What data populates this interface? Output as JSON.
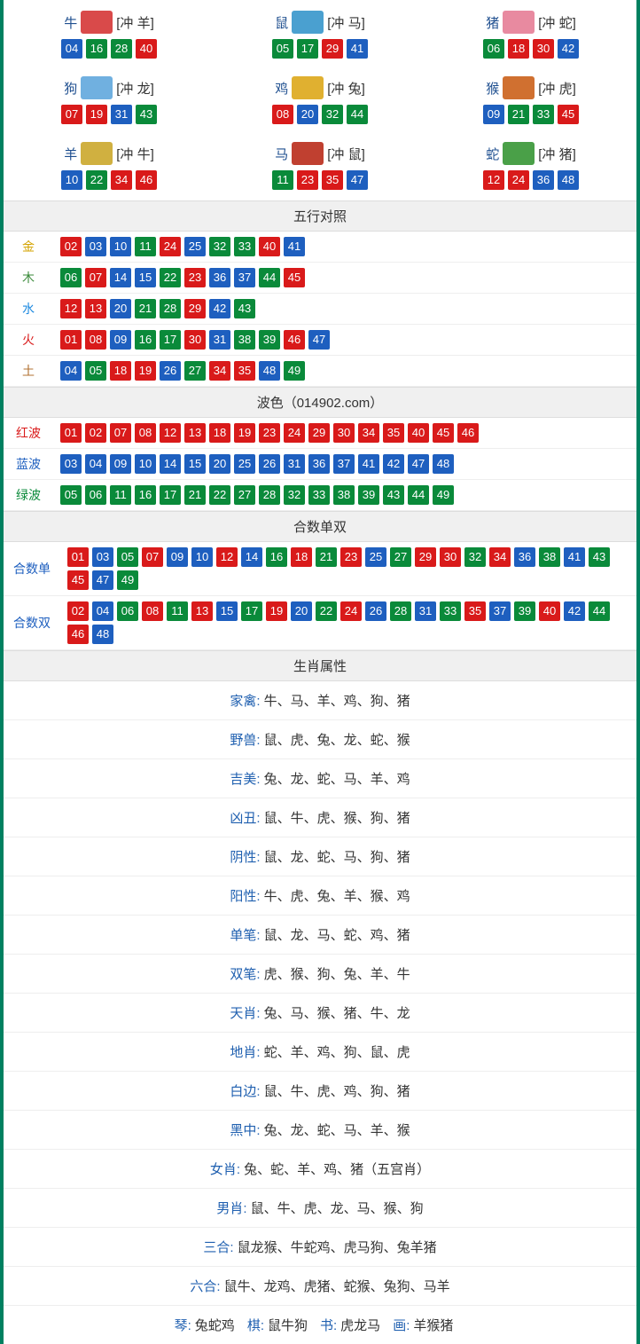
{
  "colors": {
    "red": "#d91a1a",
    "blue": "#1e5fbf",
    "green": "#0a8a3a",
    "gold": "#d4a300",
    "wood": "#3a8a3a",
    "water": "#1e8ae0",
    "fire": "#d91a1a",
    "earth": "#b07030",
    "label_red": "#d91a1a",
    "label_blue": "#1e5fbf",
    "label_green": "#0a8a3a",
    "label_link": "#205090"
  },
  "zodiac_icon_colors": {
    "牛": "#d94a4a",
    "鼠": "#4aa0d0",
    "猪": "#e88aa0",
    "狗": "#70b0e0",
    "鸡": "#e0b030",
    "猴": "#d07030",
    "羊": "#d0b040",
    "马": "#c04030",
    "蛇": "#4aa048"
  },
  "zodiac": [
    {
      "name": "牛",
      "clash": "[冲 羊]",
      "balls": [
        {
          "n": "04",
          "c": "blue"
        },
        {
          "n": "16",
          "c": "green"
        },
        {
          "n": "28",
          "c": "green"
        },
        {
          "n": "40",
          "c": "red"
        }
      ]
    },
    {
      "name": "鼠",
      "clash": "[冲 马]",
      "balls": [
        {
          "n": "05",
          "c": "green"
        },
        {
          "n": "17",
          "c": "green"
        },
        {
          "n": "29",
          "c": "red"
        },
        {
          "n": "41",
          "c": "blue"
        }
      ]
    },
    {
      "name": "猪",
      "clash": "[冲 蛇]",
      "balls": [
        {
          "n": "06",
          "c": "green"
        },
        {
          "n": "18",
          "c": "red"
        },
        {
          "n": "30",
          "c": "red"
        },
        {
          "n": "42",
          "c": "blue"
        }
      ]
    },
    {
      "name": "狗",
      "clash": "[冲 龙]",
      "balls": [
        {
          "n": "07",
          "c": "red"
        },
        {
          "n": "19",
          "c": "red"
        },
        {
          "n": "31",
          "c": "blue"
        },
        {
          "n": "43",
          "c": "green"
        }
      ]
    },
    {
      "name": "鸡",
      "clash": "[冲 兔]",
      "balls": [
        {
          "n": "08",
          "c": "red"
        },
        {
          "n": "20",
          "c": "blue"
        },
        {
          "n": "32",
          "c": "green"
        },
        {
          "n": "44",
          "c": "green"
        }
      ]
    },
    {
      "name": "猴",
      "clash": "[冲 虎]",
      "balls": [
        {
          "n": "09",
          "c": "blue"
        },
        {
          "n": "21",
          "c": "green"
        },
        {
          "n": "33",
          "c": "green"
        },
        {
          "n": "45",
          "c": "red"
        }
      ]
    },
    {
      "name": "羊",
      "clash": "[冲 牛]",
      "balls": [
        {
          "n": "10",
          "c": "blue"
        },
        {
          "n": "22",
          "c": "green"
        },
        {
          "n": "34",
          "c": "red"
        },
        {
          "n": "46",
          "c": "red"
        }
      ]
    },
    {
      "name": "马",
      "clash": "[冲 鼠]",
      "balls": [
        {
          "n": "11",
          "c": "green"
        },
        {
          "n": "23",
          "c": "red"
        },
        {
          "n": "35",
          "c": "red"
        },
        {
          "n": "47",
          "c": "blue"
        }
      ]
    },
    {
      "name": "蛇",
      "clash": "[冲 猪]",
      "balls": [
        {
          "n": "12",
          "c": "red"
        },
        {
          "n": "24",
          "c": "red"
        },
        {
          "n": "36",
          "c": "blue"
        },
        {
          "n": "48",
          "c": "blue"
        }
      ]
    }
  ],
  "sections": {
    "wuxing": "五行对照",
    "bose": "波色（014902.com）",
    "heshu": "合数单双",
    "shuxing": "生肖属性"
  },
  "wuxing": [
    {
      "label": "金",
      "color": "gold",
      "balls": [
        {
          "n": "02",
          "c": "red"
        },
        {
          "n": "03",
          "c": "blue"
        },
        {
          "n": "10",
          "c": "blue"
        },
        {
          "n": "11",
          "c": "green"
        },
        {
          "n": "24",
          "c": "red"
        },
        {
          "n": "25",
          "c": "blue"
        },
        {
          "n": "32",
          "c": "green"
        },
        {
          "n": "33",
          "c": "green"
        },
        {
          "n": "40",
          "c": "red"
        },
        {
          "n": "41",
          "c": "blue"
        }
      ]
    },
    {
      "label": "木",
      "color": "wood",
      "balls": [
        {
          "n": "06",
          "c": "green"
        },
        {
          "n": "07",
          "c": "red"
        },
        {
          "n": "14",
          "c": "blue"
        },
        {
          "n": "15",
          "c": "blue"
        },
        {
          "n": "22",
          "c": "green"
        },
        {
          "n": "23",
          "c": "red"
        },
        {
          "n": "36",
          "c": "blue"
        },
        {
          "n": "37",
          "c": "blue"
        },
        {
          "n": "44",
          "c": "green"
        },
        {
          "n": "45",
          "c": "red"
        }
      ]
    },
    {
      "label": "水",
      "color": "water",
      "balls": [
        {
          "n": "12",
          "c": "red"
        },
        {
          "n": "13",
          "c": "red"
        },
        {
          "n": "20",
          "c": "blue"
        },
        {
          "n": "21",
          "c": "green"
        },
        {
          "n": "28",
          "c": "green"
        },
        {
          "n": "29",
          "c": "red"
        },
        {
          "n": "42",
          "c": "blue"
        },
        {
          "n": "43",
          "c": "green"
        }
      ]
    },
    {
      "label": "火",
      "color": "fire",
      "balls": [
        {
          "n": "01",
          "c": "red"
        },
        {
          "n": "08",
          "c": "red"
        },
        {
          "n": "09",
          "c": "blue"
        },
        {
          "n": "16",
          "c": "green"
        },
        {
          "n": "17",
          "c": "green"
        },
        {
          "n": "30",
          "c": "red"
        },
        {
          "n": "31",
          "c": "blue"
        },
        {
          "n": "38",
          "c": "green"
        },
        {
          "n": "39",
          "c": "green"
        },
        {
          "n": "46",
          "c": "red"
        },
        {
          "n": "47",
          "c": "blue"
        }
      ]
    },
    {
      "label": "土",
      "color": "earth",
      "balls": [
        {
          "n": "04",
          "c": "blue"
        },
        {
          "n": "05",
          "c": "green"
        },
        {
          "n": "18",
          "c": "red"
        },
        {
          "n": "19",
          "c": "red"
        },
        {
          "n": "26",
          "c": "blue"
        },
        {
          "n": "27",
          "c": "green"
        },
        {
          "n": "34",
          "c": "red"
        },
        {
          "n": "35",
          "c": "red"
        },
        {
          "n": "48",
          "c": "blue"
        },
        {
          "n": "49",
          "c": "green"
        }
      ]
    }
  ],
  "bose": [
    {
      "label": "红波",
      "color": "label_red",
      "balls": [
        {
          "n": "01",
          "c": "red"
        },
        {
          "n": "02",
          "c": "red"
        },
        {
          "n": "07",
          "c": "red"
        },
        {
          "n": "08",
          "c": "red"
        },
        {
          "n": "12",
          "c": "red"
        },
        {
          "n": "13",
          "c": "red"
        },
        {
          "n": "18",
          "c": "red"
        },
        {
          "n": "19",
          "c": "red"
        },
        {
          "n": "23",
          "c": "red"
        },
        {
          "n": "24",
          "c": "red"
        },
        {
          "n": "29",
          "c": "red"
        },
        {
          "n": "30",
          "c": "red"
        },
        {
          "n": "34",
          "c": "red"
        },
        {
          "n": "35",
          "c": "red"
        },
        {
          "n": "40",
          "c": "red"
        },
        {
          "n": "45",
          "c": "red"
        },
        {
          "n": "46",
          "c": "red"
        }
      ]
    },
    {
      "label": "蓝波",
      "color": "label_blue",
      "balls": [
        {
          "n": "03",
          "c": "blue"
        },
        {
          "n": "04",
          "c": "blue"
        },
        {
          "n": "09",
          "c": "blue"
        },
        {
          "n": "10",
          "c": "blue"
        },
        {
          "n": "14",
          "c": "blue"
        },
        {
          "n": "15",
          "c": "blue"
        },
        {
          "n": "20",
          "c": "blue"
        },
        {
          "n": "25",
          "c": "blue"
        },
        {
          "n": "26",
          "c": "blue"
        },
        {
          "n": "31",
          "c": "blue"
        },
        {
          "n": "36",
          "c": "blue"
        },
        {
          "n": "37",
          "c": "blue"
        },
        {
          "n": "41",
          "c": "blue"
        },
        {
          "n": "42",
          "c": "blue"
        },
        {
          "n": "47",
          "c": "blue"
        },
        {
          "n": "48",
          "c": "blue"
        }
      ]
    },
    {
      "label": "绿波",
      "color": "label_green",
      "balls": [
        {
          "n": "05",
          "c": "green"
        },
        {
          "n": "06",
          "c": "green"
        },
        {
          "n": "11",
          "c": "green"
        },
        {
          "n": "16",
          "c": "green"
        },
        {
          "n": "17",
          "c": "green"
        },
        {
          "n": "21",
          "c": "green"
        },
        {
          "n": "22",
          "c": "green"
        },
        {
          "n": "27",
          "c": "green"
        },
        {
          "n": "28",
          "c": "green"
        },
        {
          "n": "32",
          "c": "green"
        },
        {
          "n": "33",
          "c": "green"
        },
        {
          "n": "38",
          "c": "green"
        },
        {
          "n": "39",
          "c": "green"
        },
        {
          "n": "43",
          "c": "green"
        },
        {
          "n": "44",
          "c": "green"
        },
        {
          "n": "49",
          "c": "green"
        }
      ]
    }
  ],
  "heshu": [
    {
      "label": "合数单",
      "color": "label_blue",
      "balls": [
        {
          "n": "01",
          "c": "red"
        },
        {
          "n": "03",
          "c": "blue"
        },
        {
          "n": "05",
          "c": "green"
        },
        {
          "n": "07",
          "c": "red"
        },
        {
          "n": "09",
          "c": "blue"
        },
        {
          "n": "10",
          "c": "blue"
        },
        {
          "n": "12",
          "c": "red"
        },
        {
          "n": "14",
          "c": "blue"
        },
        {
          "n": "16",
          "c": "green"
        },
        {
          "n": "18",
          "c": "red"
        },
        {
          "n": "21",
          "c": "green"
        },
        {
          "n": "23",
          "c": "red"
        },
        {
          "n": "25",
          "c": "blue"
        },
        {
          "n": "27",
          "c": "green"
        },
        {
          "n": "29",
          "c": "red"
        },
        {
          "n": "30",
          "c": "red"
        },
        {
          "n": "32",
          "c": "green"
        },
        {
          "n": "34",
          "c": "red"
        },
        {
          "n": "36",
          "c": "blue"
        },
        {
          "n": "38",
          "c": "green"
        },
        {
          "n": "41",
          "c": "blue"
        },
        {
          "n": "43",
          "c": "green"
        },
        {
          "n": "45",
          "c": "red"
        },
        {
          "n": "47",
          "c": "blue"
        },
        {
          "n": "49",
          "c": "green"
        }
      ]
    },
    {
      "label": "合数双",
      "color": "label_blue",
      "balls": [
        {
          "n": "02",
          "c": "red"
        },
        {
          "n": "04",
          "c": "blue"
        },
        {
          "n": "06",
          "c": "green"
        },
        {
          "n": "08",
          "c": "red"
        },
        {
          "n": "11",
          "c": "green"
        },
        {
          "n": "13",
          "c": "red"
        },
        {
          "n": "15",
          "c": "blue"
        },
        {
          "n": "17",
          "c": "green"
        },
        {
          "n": "19",
          "c": "red"
        },
        {
          "n": "20",
          "c": "blue"
        },
        {
          "n": "22",
          "c": "green"
        },
        {
          "n": "24",
          "c": "red"
        },
        {
          "n": "26",
          "c": "blue"
        },
        {
          "n": "28",
          "c": "green"
        },
        {
          "n": "31",
          "c": "blue"
        },
        {
          "n": "33",
          "c": "green"
        },
        {
          "n": "35",
          "c": "red"
        },
        {
          "n": "37",
          "c": "blue"
        },
        {
          "n": "39",
          "c": "green"
        },
        {
          "n": "40",
          "c": "red"
        },
        {
          "n": "42",
          "c": "blue"
        },
        {
          "n": "44",
          "c": "green"
        },
        {
          "n": "46",
          "c": "red"
        },
        {
          "n": "48",
          "c": "blue"
        }
      ]
    }
  ],
  "attrs": [
    {
      "label": "家禽:",
      "val": "牛、马、羊、鸡、狗、猪"
    },
    {
      "label": "野兽:",
      "val": "鼠、虎、兔、龙、蛇、猴"
    },
    {
      "label": "吉美:",
      "val": "兔、龙、蛇、马、羊、鸡"
    },
    {
      "label": "凶丑:",
      "val": "鼠、牛、虎、猴、狗、猪"
    },
    {
      "label": "阴性:",
      "val": "鼠、龙、蛇、马、狗、猪"
    },
    {
      "label": "阳性:",
      "val": "牛、虎、兔、羊、猴、鸡"
    },
    {
      "label": "单笔:",
      "val": "鼠、龙、马、蛇、鸡、猪"
    },
    {
      "label": "双笔:",
      "val": "虎、猴、狗、兔、羊、牛"
    },
    {
      "label": "天肖:",
      "val": "兔、马、猴、猪、牛、龙"
    },
    {
      "label": "地肖:",
      "val": "蛇、羊、鸡、狗、鼠、虎"
    },
    {
      "label": "白边:",
      "val": "鼠、牛、虎、鸡、狗、猪"
    },
    {
      "label": "黑中:",
      "val": "兔、龙、蛇、马、羊、猴"
    },
    {
      "label": "女肖:",
      "val": "兔、蛇、羊、鸡、猪（五宫肖）"
    },
    {
      "label": "男肖:",
      "val": "鼠、牛、虎、龙、马、猴、狗"
    },
    {
      "label": "三合:",
      "val": "鼠龙猴、牛蛇鸡、虎马狗、兔羊猪"
    },
    {
      "label": "六合:",
      "val": "鼠牛、龙鸡、虎猪、蛇猴、兔狗、马羊"
    }
  ],
  "footer_parts": [
    {
      "label": "琴:",
      "val": "兔蛇鸡"
    },
    {
      "label": "棋:",
      "val": "鼠牛狗"
    },
    {
      "label": "书:",
      "val": "虎龙马"
    },
    {
      "label": "画:",
      "val": "羊猴猪"
    }
  ]
}
